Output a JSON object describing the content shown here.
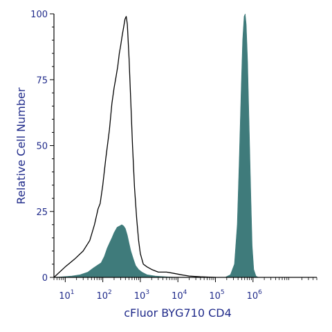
{
  "chart_data": {
    "type": "area",
    "xlabel": "cFluor BYG710 CD4",
    "ylabel": "Relative Cell Number",
    "x_scale": "log",
    "xlim": [
      5,
      50000000
    ],
    "ylim": [
      0,
      100
    ],
    "x_ticks": [
      {
        "base": "10",
        "exp": "1",
        "value": 10
      },
      {
        "base": "10",
        "exp": "2",
        "value": 100
      },
      {
        "base": "10",
        "exp": "3",
        "value": 1000
      },
      {
        "base": "10",
        "exp": "4",
        "value": 10000
      },
      {
        "base": "10",
        "exp": "5",
        "value": 100000
      },
      {
        "base": "10",
        "exp": "6",
        "value": 1000000
      }
    ],
    "y_ticks": [
      "0",
      "25",
      "50",
      "75",
      "100"
    ],
    "y_tick_values": [
      0,
      25,
      50,
      75,
      100
    ],
    "series": [
      {
        "style": "outline",
        "color": "#000000",
        "points": [
          [
            5,
            0
          ],
          [
            10,
            4
          ],
          [
            18,
            7
          ],
          [
            30,
            10
          ],
          [
            45,
            14
          ],
          [
            60,
            20
          ],
          [
            75,
            26
          ],
          [
            85,
            28
          ],
          [
            100,
            35
          ],
          [
            120,
            45
          ],
          [
            150,
            56
          ],
          [
            175,
            66
          ],
          [
            200,
            72
          ],
          [
            225,
            76
          ],
          [
            250,
            80
          ],
          [
            275,
            85
          ],
          [
            300,
            88
          ],
          [
            330,
            92
          ],
          [
            360,
            95
          ],
          [
            390,
            98
          ],
          [
            420,
            99
          ],
          [
            450,
            96
          ],
          [
            500,
            83
          ],
          [
            560,
            66
          ],
          [
            620,
            50
          ],
          [
            700,
            34
          ],
          [
            800,
            22
          ],
          [
            900,
            14
          ],
          [
            1000,
            9
          ],
          [
            1200,
            5
          ],
          [
            1500,
            4
          ],
          [
            2000,
            3
          ],
          [
            3000,
            2
          ],
          [
            5000,
            2
          ],
          [
            8000,
            1.5
          ],
          [
            12000,
            1
          ],
          [
            20000,
            0.5
          ],
          [
            40000,
            0.2
          ],
          [
            100000,
            0
          ]
        ]
      },
      {
        "style": "filled",
        "color": "#3f7b7b",
        "points": [
          [
            5,
            0
          ],
          [
            15,
            0.5
          ],
          [
            25,
            1
          ],
          [
            40,
            2
          ],
          [
            55,
            3.5
          ],
          [
            70,
            4.5
          ],
          [
            90,
            5.5
          ],
          [
            110,
            8
          ],
          [
            130,
            11
          ],
          [
            150,
            13
          ],
          [
            175,
            15
          ],
          [
            200,
            17
          ],
          [
            240,
            19
          ],
          [
            280,
            19.5
          ],
          [
            320,
            20
          ],
          [
            360,
            19.5
          ],
          [
            400,
            18.5
          ],
          [
            450,
            16
          ],
          [
            500,
            13
          ],
          [
            560,
            10
          ],
          [
            650,
            7
          ],
          [
            750,
            4.5
          ],
          [
            900,
            3
          ],
          [
            1100,
            2
          ],
          [
            1500,
            1
          ],
          [
            2500,
            0.5
          ],
          [
            5000,
            0.2
          ],
          [
            10000,
            0
          ]
        ]
      },
      {
        "style": "filled",
        "color": "#3f7b7b",
        "points": [
          [
            180000,
            0
          ],
          [
            250000,
            1
          ],
          [
            320000,
            5
          ],
          [
            380000,
            20
          ],
          [
            430000,
            45
          ],
          [
            480000,
            70
          ],
          [
            530000,
            90
          ],
          [
            580000,
            99
          ],
          [
            620000,
            100
          ],
          [
            660000,
            96
          ],
          [
            720000,
            82
          ],
          [
            800000,
            55
          ],
          [
            880000,
            30
          ],
          [
            950000,
            12
          ],
          [
            1050000,
            3
          ],
          [
            1200000,
            0.5
          ],
          [
            1400000,
            0
          ]
        ]
      }
    ]
  }
}
